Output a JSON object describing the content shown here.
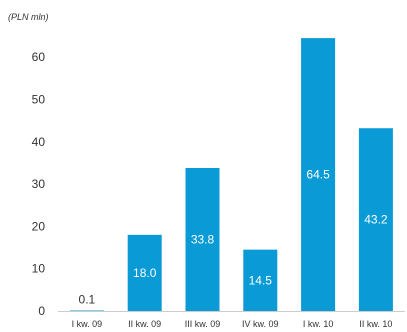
{
  "chart_data": {
    "type": "bar",
    "unit_label": "(PLN mln)",
    "categories": [
      "I kw. 09",
      "II kw. 09",
      "III kw. 09",
      "IV kw. 09",
      "I kw. 10",
      "II kw. 10"
    ],
    "values": [
      0.1,
      18.0,
      33.8,
      14.5,
      64.5,
      43.2
    ],
    "value_labels": [
      "0.1",
      "18.0",
      "33.8",
      "14.5",
      "64.5",
      "43.2"
    ],
    "ylim": [
      0,
      65
    ],
    "yticks": [
      "0",
      "10",
      "20",
      "30",
      "40",
      "50",
      "60"
    ],
    "grid": false,
    "bar_color": "#0a9ad6",
    "label_color_inside": "#ffffff",
    "label_color_outside": "#333333"
  }
}
